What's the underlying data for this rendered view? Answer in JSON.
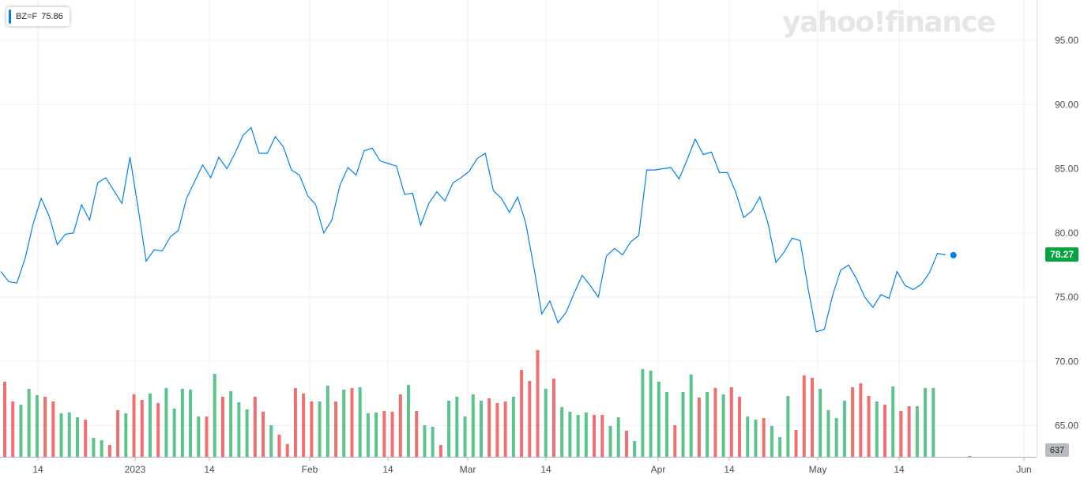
{
  "ticker": {
    "symbol": "BZ=F",
    "value": "75.86"
  },
  "watermark": "yahoo!finance",
  "colors": {
    "line": "#0081f2",
    "up": "#5cc48a",
    "down": "#f06f6f",
    "last_price_bg": "#00a33e",
    "grid": "#eef0f2"
  },
  "chart_data": {
    "type": "line",
    "title": "",
    "ylabel": "",
    "ylim": [
      62.5,
      98.5
    ],
    "y_ticks": [
      "95.00",
      "90.00",
      "85.00",
      "80.00",
      "75.00",
      "70.00",
      "65.00"
    ],
    "x_ticks": [
      "14",
      "2023",
      "14",
      "Feb",
      "14",
      "Mar",
      "14",
      "Apr",
      "14",
      "May",
      "14",
      "Jun"
    ],
    "last_price": "78.27",
    "last_volume": "637",
    "series": [
      {
        "values": [
          77.0,
          76.2,
          76.1,
          78.0,
          80.7,
          82.7,
          81.3,
          79.1,
          79.9,
          80.0,
          82.2,
          81.0,
          83.9,
          84.3,
          83.3,
          82.3,
          85.9,
          82.0,
          77.8,
          78.7,
          78.6,
          79.7,
          80.2,
          82.7,
          84.0,
          85.3,
          84.3,
          85.9,
          85.0,
          86.2,
          87.6,
          88.2,
          86.2,
          86.2,
          87.5,
          86.7,
          84.9,
          84.5,
          82.9,
          82.2,
          80.0,
          81.0,
          83.7,
          85.1,
          84.5,
          86.4,
          86.6,
          85.6,
          85.4,
          85.2,
          83.0,
          83.1,
          80.6,
          82.3,
          83.2,
          82.5,
          83.9,
          84.3,
          84.8,
          85.8,
          86.2,
          83.3,
          82.7,
          81.6,
          82.8,
          80.8,
          77.4,
          73.7,
          74.7,
          73.0,
          73.8,
          75.3,
          76.7,
          75.9,
          75.0,
          78.2,
          78.8,
          78.3,
          79.3,
          79.8,
          84.9,
          84.9,
          85.0,
          85.1,
          84.2,
          85.7,
          87.3,
          86.1,
          86.3,
          84.7,
          84.7,
          83.2,
          81.2,
          81.7,
          82.8,
          80.8,
          77.7,
          78.5,
          79.6,
          79.4,
          75.6,
          72.3,
          72.5,
          75.1,
          77.1,
          77.5,
          76.4,
          75.0,
          74.2,
          75.2,
          74.9,
          77.0,
          75.9,
          75.6,
          76.0,
          76.9,
          78.4,
          78.3
        ]
      }
    ],
    "volume": [
      {
        "h": 95,
        "up": false
      },
      {
        "h": 70,
        "up": false
      },
      {
        "h": 66,
        "up": true
      },
      {
        "h": 86,
        "up": true
      },
      {
        "h": 78,
        "up": true
      },
      {
        "h": 76,
        "up": false
      },
      {
        "h": 70,
        "up": false
      },
      {
        "h": 55,
        "up": true
      },
      {
        "h": 56,
        "up": true
      },
      {
        "h": 50,
        "up": true
      },
      {
        "h": 47,
        "up": false
      },
      {
        "h": 24,
        "up": true
      },
      {
        "h": 21,
        "up": true
      },
      {
        "h": 15,
        "up": false
      },
      {
        "h": 59,
        "up": false
      },
      {
        "h": 55,
        "up": true
      },
      {
        "h": 79,
        "up": false
      },
      {
        "h": 72,
        "up": false
      },
      {
        "h": 80,
        "up": true
      },
      {
        "h": 68,
        "up": false
      },
      {
        "h": 87,
        "up": true
      },
      {
        "h": 61,
        "up": true
      },
      {
        "h": 86,
        "up": true
      },
      {
        "h": 85,
        "up": true
      },
      {
        "h": 51,
        "up": true
      },
      {
        "h": 51,
        "up": false
      },
      {
        "h": 105,
        "up": true
      },
      {
        "h": 76,
        "up": false
      },
      {
        "h": 83,
        "up": true
      },
      {
        "h": 69,
        "up": true
      },
      {
        "h": 60,
        "up": true
      },
      {
        "h": 76,
        "up": false
      },
      {
        "h": 57,
        "up": false
      },
      {
        "h": 40,
        "up": true
      },
      {
        "h": 28,
        "up": false
      },
      {
        "h": 16,
        "up": false
      },
      {
        "h": 87,
        "up": false
      },
      {
        "h": 80,
        "up": false
      },
      {
        "h": 70,
        "up": false
      },
      {
        "h": 70,
        "up": true
      },
      {
        "h": 90,
        "up": true
      },
      {
        "h": 70,
        "up": false
      },
      {
        "h": 85,
        "up": true
      },
      {
        "h": 87,
        "up": false
      },
      {
        "h": 88,
        "up": true
      },
      {
        "h": 55,
        "up": true
      },
      {
        "h": 56,
        "up": true
      },
      {
        "h": 58,
        "up": false
      },
      {
        "h": 57,
        "up": false
      },
      {
        "h": 79,
        "up": false
      },
      {
        "h": 91,
        "up": true
      },
      {
        "h": 58,
        "up": false
      },
      {
        "h": 40,
        "up": true
      },
      {
        "h": 38,
        "up": true
      },
      {
        "h": 15,
        "up": false
      },
      {
        "h": 71,
        "up": true
      },
      {
        "h": 76,
        "up": true
      },
      {
        "h": 51,
        "up": true
      },
      {
        "h": 79,
        "up": true
      },
      {
        "h": 71,
        "up": true
      },
      {
        "h": 74,
        "up": false
      },
      {
        "h": 68,
        "up": false
      },
      {
        "h": 70,
        "up": false
      },
      {
        "h": 76,
        "up": true
      },
      {
        "h": 110,
        "up": false
      },
      {
        "h": 96,
        "up": false
      },
      {
        "h": 135,
        "up": false
      },
      {
        "h": 86,
        "up": true
      },
      {
        "h": 99,
        "up": false
      },
      {
        "h": 63,
        "up": true
      },
      {
        "h": 57,
        "up": true
      },
      {
        "h": 53,
        "up": true
      },
      {
        "h": 56,
        "up": true
      },
      {
        "h": 53,
        "up": false
      },
      {
        "h": 53,
        "up": false
      },
      {
        "h": 39,
        "up": true
      },
      {
        "h": 50,
        "up": true
      },
      {
        "h": 33,
        "up": false
      },
      {
        "h": 20,
        "up": true
      },
      {
        "h": 111,
        "up": true
      },
      {
        "h": 109,
        "up": true
      },
      {
        "h": 95,
        "up": true
      },
      {
        "h": 82,
        "up": true
      },
      {
        "h": 40,
        "up": false
      },
      {
        "h": 82,
        "up": true
      },
      {
        "h": 104,
        "up": true
      },
      {
        "h": 75,
        "up": false
      },
      {
        "h": 82,
        "up": true
      },
      {
        "h": 87,
        "up": false
      },
      {
        "h": 79,
        "up": true
      },
      {
        "h": 88,
        "up": false
      },
      {
        "h": 76,
        "up": false
      },
      {
        "h": 51,
        "up": true
      },
      {
        "h": 47,
        "up": true
      },
      {
        "h": 49,
        "up": false
      },
      {
        "h": 39,
        "up": true
      },
      {
        "h": 25,
        "up": true
      },
      {
        "h": 77,
        "up": true
      },
      {
        "h": 34,
        "up": false
      },
      {
        "h": 103,
        "up": false
      },
      {
        "h": 100,
        "up": false
      },
      {
        "h": 86,
        "up": true
      },
      {
        "h": 59,
        "up": true
      },
      {
        "h": 49,
        "up": true
      },
      {
        "h": 71,
        "up": true
      },
      {
        "h": 88,
        "up": false
      },
      {
        "h": 93,
        "up": false
      },
      {
        "h": 77,
        "up": false
      },
      {
        "h": 70,
        "up": true
      },
      {
        "h": 66,
        "up": false
      },
      {
        "h": 89,
        "up": true
      },
      {
        "h": 58,
        "up": false
      },
      {
        "h": 64,
        "up": false
      },
      {
        "h": 64,
        "up": true
      },
      {
        "h": 87,
        "up": true
      },
      {
        "h": 87,
        "up": true
      }
    ]
  }
}
